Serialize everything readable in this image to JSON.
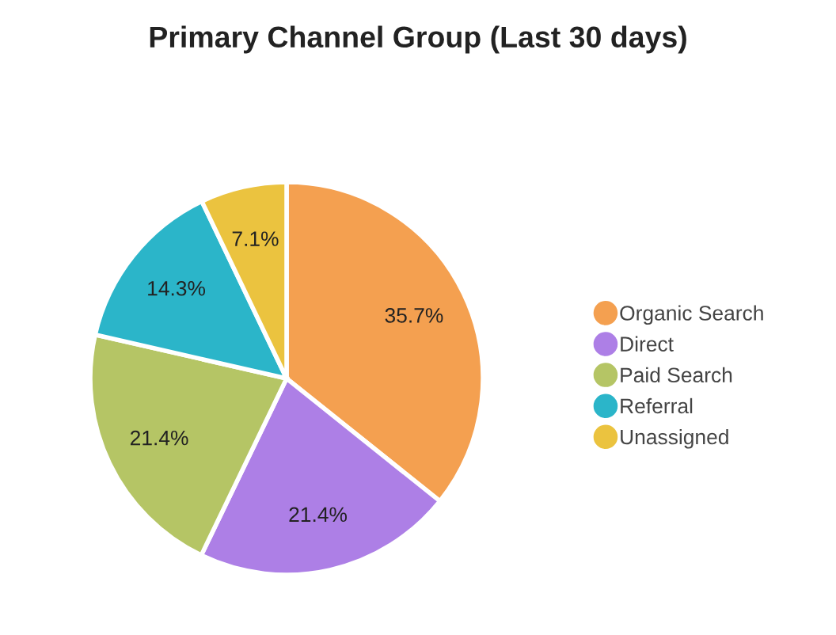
{
  "chart_data": {
    "type": "pie",
    "title": "Primary Channel Group (Last 30 days)",
    "categories": [
      "Organic Search",
      "Direct",
      "Paid Search",
      "Referral",
      "Unassigned"
    ],
    "values": [
      35.7,
      21.4,
      21.4,
      14.3,
      7.1
    ],
    "value_labels": [
      "35.7%",
      "21.4%",
      "21.4%",
      "14.3%",
      "7.1%"
    ],
    "colors": [
      "#f4a050",
      "#ad7fe6",
      "#b5c565",
      "#2bb5c9",
      "#ebc33f"
    ],
    "legend": "right"
  }
}
